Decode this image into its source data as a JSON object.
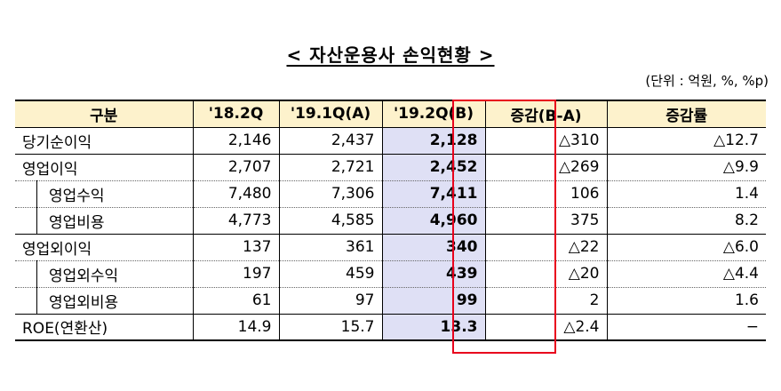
{
  "title": "< 자산운용사 손익현황 >",
  "unit": "(단위 : 억원, %, %p)",
  "table": {
    "headers": [
      "구분",
      "'18.2Q",
      "'19.1Q(A)",
      "'19.2Q(B)",
      "증감(B-A)",
      "증감률"
    ],
    "rows": [
      {
        "label": "당기순이익",
        "c1": "2,146",
        "c2": "2,437",
        "c3": "2,128",
        "c4": "△310",
        "c5": "△12.7"
      },
      {
        "label": "영업이익",
        "c1": "2,707",
        "c2": "2,721",
        "c3": "2,452",
        "c4": "△269",
        "c5": "△9.9"
      },
      {
        "label": "영업수익",
        "c1": "7,480",
        "c2": "7,306",
        "c3": "7,411",
        "c4": "106",
        "c5": "1.4"
      },
      {
        "label": "영업비용",
        "c1": "4,773",
        "c2": "4,585",
        "c3": "4,960",
        "c4": "375",
        "c5": "8.2"
      },
      {
        "label": "영업외이익",
        "c1": "137",
        "c2": "361",
        "c3": "340",
        "c4": "△22",
        "c5": "△6.0"
      },
      {
        "label": "영업외수익",
        "c1": "197",
        "c2": "459",
        "c3": "439",
        "c4": "△20",
        "c5": "△4.4"
      },
      {
        "label": "영업외비용",
        "c1": "61",
        "c2": "97",
        "c3": "99",
        "c4": "2",
        "c5": "1.6"
      },
      {
        "label": "ROE(연환산)",
        "c1": "14.9",
        "c2": "15.7",
        "c3": "13.3",
        "c4": "△2.4",
        "c5": "−"
      }
    ]
  },
  "colors": {
    "header_bg": "#fdf2cc",
    "highlight_bg": "#dfe0f5",
    "highlight_border": "#e8001c"
  }
}
